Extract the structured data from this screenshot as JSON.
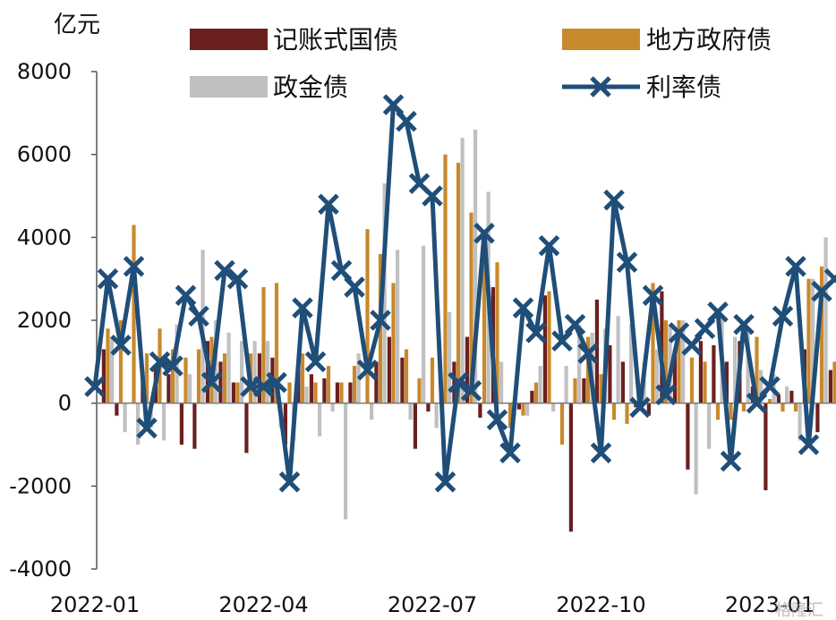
{
  "chart_data": {
    "type": "bar",
    "unit_label": "亿元",
    "ylim": [
      -4000,
      8000
    ],
    "yticks": [
      8000,
      6000,
      4000,
      2000,
      0,
      -2000,
      -4000
    ],
    "xtick_labels": [
      "2022-01",
      "2022-04",
      "2022-07",
      "2022-10",
      "2023-01"
    ],
    "xtick_indices": [
      0,
      13,
      26,
      39,
      52
    ],
    "legend_position": "top",
    "series": [
      {
        "name": "记账式国债",
        "kind": "bar",
        "color": "#6b1f1f",
        "values": [
          0,
          1300,
          -300,
          0,
          600,
          900,
          700,
          -1000,
          -1100,
          1500,
          1000,
          500,
          -1200,
          1200,
          1100,
          -1000,
          1000,
          700,
          600,
          500,
          500,
          0,
          1000,
          1600,
          1100,
          -1100,
          -200,
          500,
          1000,
          1600,
          -350,
          2800,
          0,
          -150,
          300,
          2600,
          0,
          -3100,
          600,
          2500,
          1400,
          1000,
          -100,
          -300,
          2700,
          1300,
          -1600,
          1500,
          1400,
          1000,
          1500,
          400,
          -2100,
          200,
          300,
          1300,
          -700,
          800,
          -700,
          300
        ]
      },
      {
        "name": "地方政府债",
        "kind": "bar",
        "color": "#c8892c",
        "values": [
          0,
          1800,
          2000,
          4300,
          1200,
          1800,
          1300,
          1100,
          1300,
          1600,
          1200,
          500,
          1200,
          2800,
          2900,
          500,
          1200,
          500,
          900,
          500,
          900,
          4200,
          3600,
          2900,
          1300,
          600,
          1100,
          6000,
          5800,
          4600,
          3500,
          3400,
          -600,
          -300,
          500,
          2700,
          -1000,
          600,
          1600,
          700,
          -400,
          -500,
          -100,
          2900,
          2000,
          2000,
          1100,
          1000,
          -400,
          -400,
          -200,
          1600,
          100,
          -200,
          -200,
          3000,
          3300,
          1000,
          3000,
          1700
        ]
      },
      {
        "name": "政金债",
        "kind": "bar",
        "color": "#c0c0c0",
        "values": [
          0,
          1600,
          -700,
          -1000,
          -600,
          -900,
          1900,
          700,
          3700,
          2000,
          1700,
          1500,
          1500,
          1500,
          -600,
          -900,
          400,
          -800,
          -200,
          -2800,
          1200,
          -400,
          5300,
          3700,
          -400,
          3800,
          -600,
          2200,
          6400,
          6600,
          5100,
          1000,
          -300,
          -300,
          900,
          -200,
          900,
          1900,
          1700,
          1800,
          2100,
          1900,
          1000,
          1300,
          1900,
          2000,
          -2200,
          -1100,
          2100,
          1600,
          1800,
          800,
          700,
          400,
          -900,
          3000,
          4000,
          -1000,
          3300,
          3400
        ]
      },
      {
        "name": "利率债",
        "kind": "line",
        "color": "#1f4e79",
        "values": [
          400,
          3000,
          1400,
          3300,
          -600,
          1000,
          900,
          2600,
          2100,
          500,
          3200,
          3000,
          400,
          400,
          500,
          -1900,
          2300,
          1000,
          4800,
          3200,
          2800,
          800,
          2000,
          7200,
          6800,
          5300,
          5000,
          -1900,
          500,
          300,
          4100,
          -400,
          -1200,
          2300,
          1700,
          3800,
          1500,
          1900,
          1200,
          -1200,
          4900,
          3400,
          -100,
          2600,
          200,
          1700,
          1400,
          1800,
          2200,
          -1400,
          1900,
          0,
          400,
          2100,
          3300,
          -1000,
          2700,
          3000
        ]
      }
    ]
  },
  "watermark": "格隆汇"
}
